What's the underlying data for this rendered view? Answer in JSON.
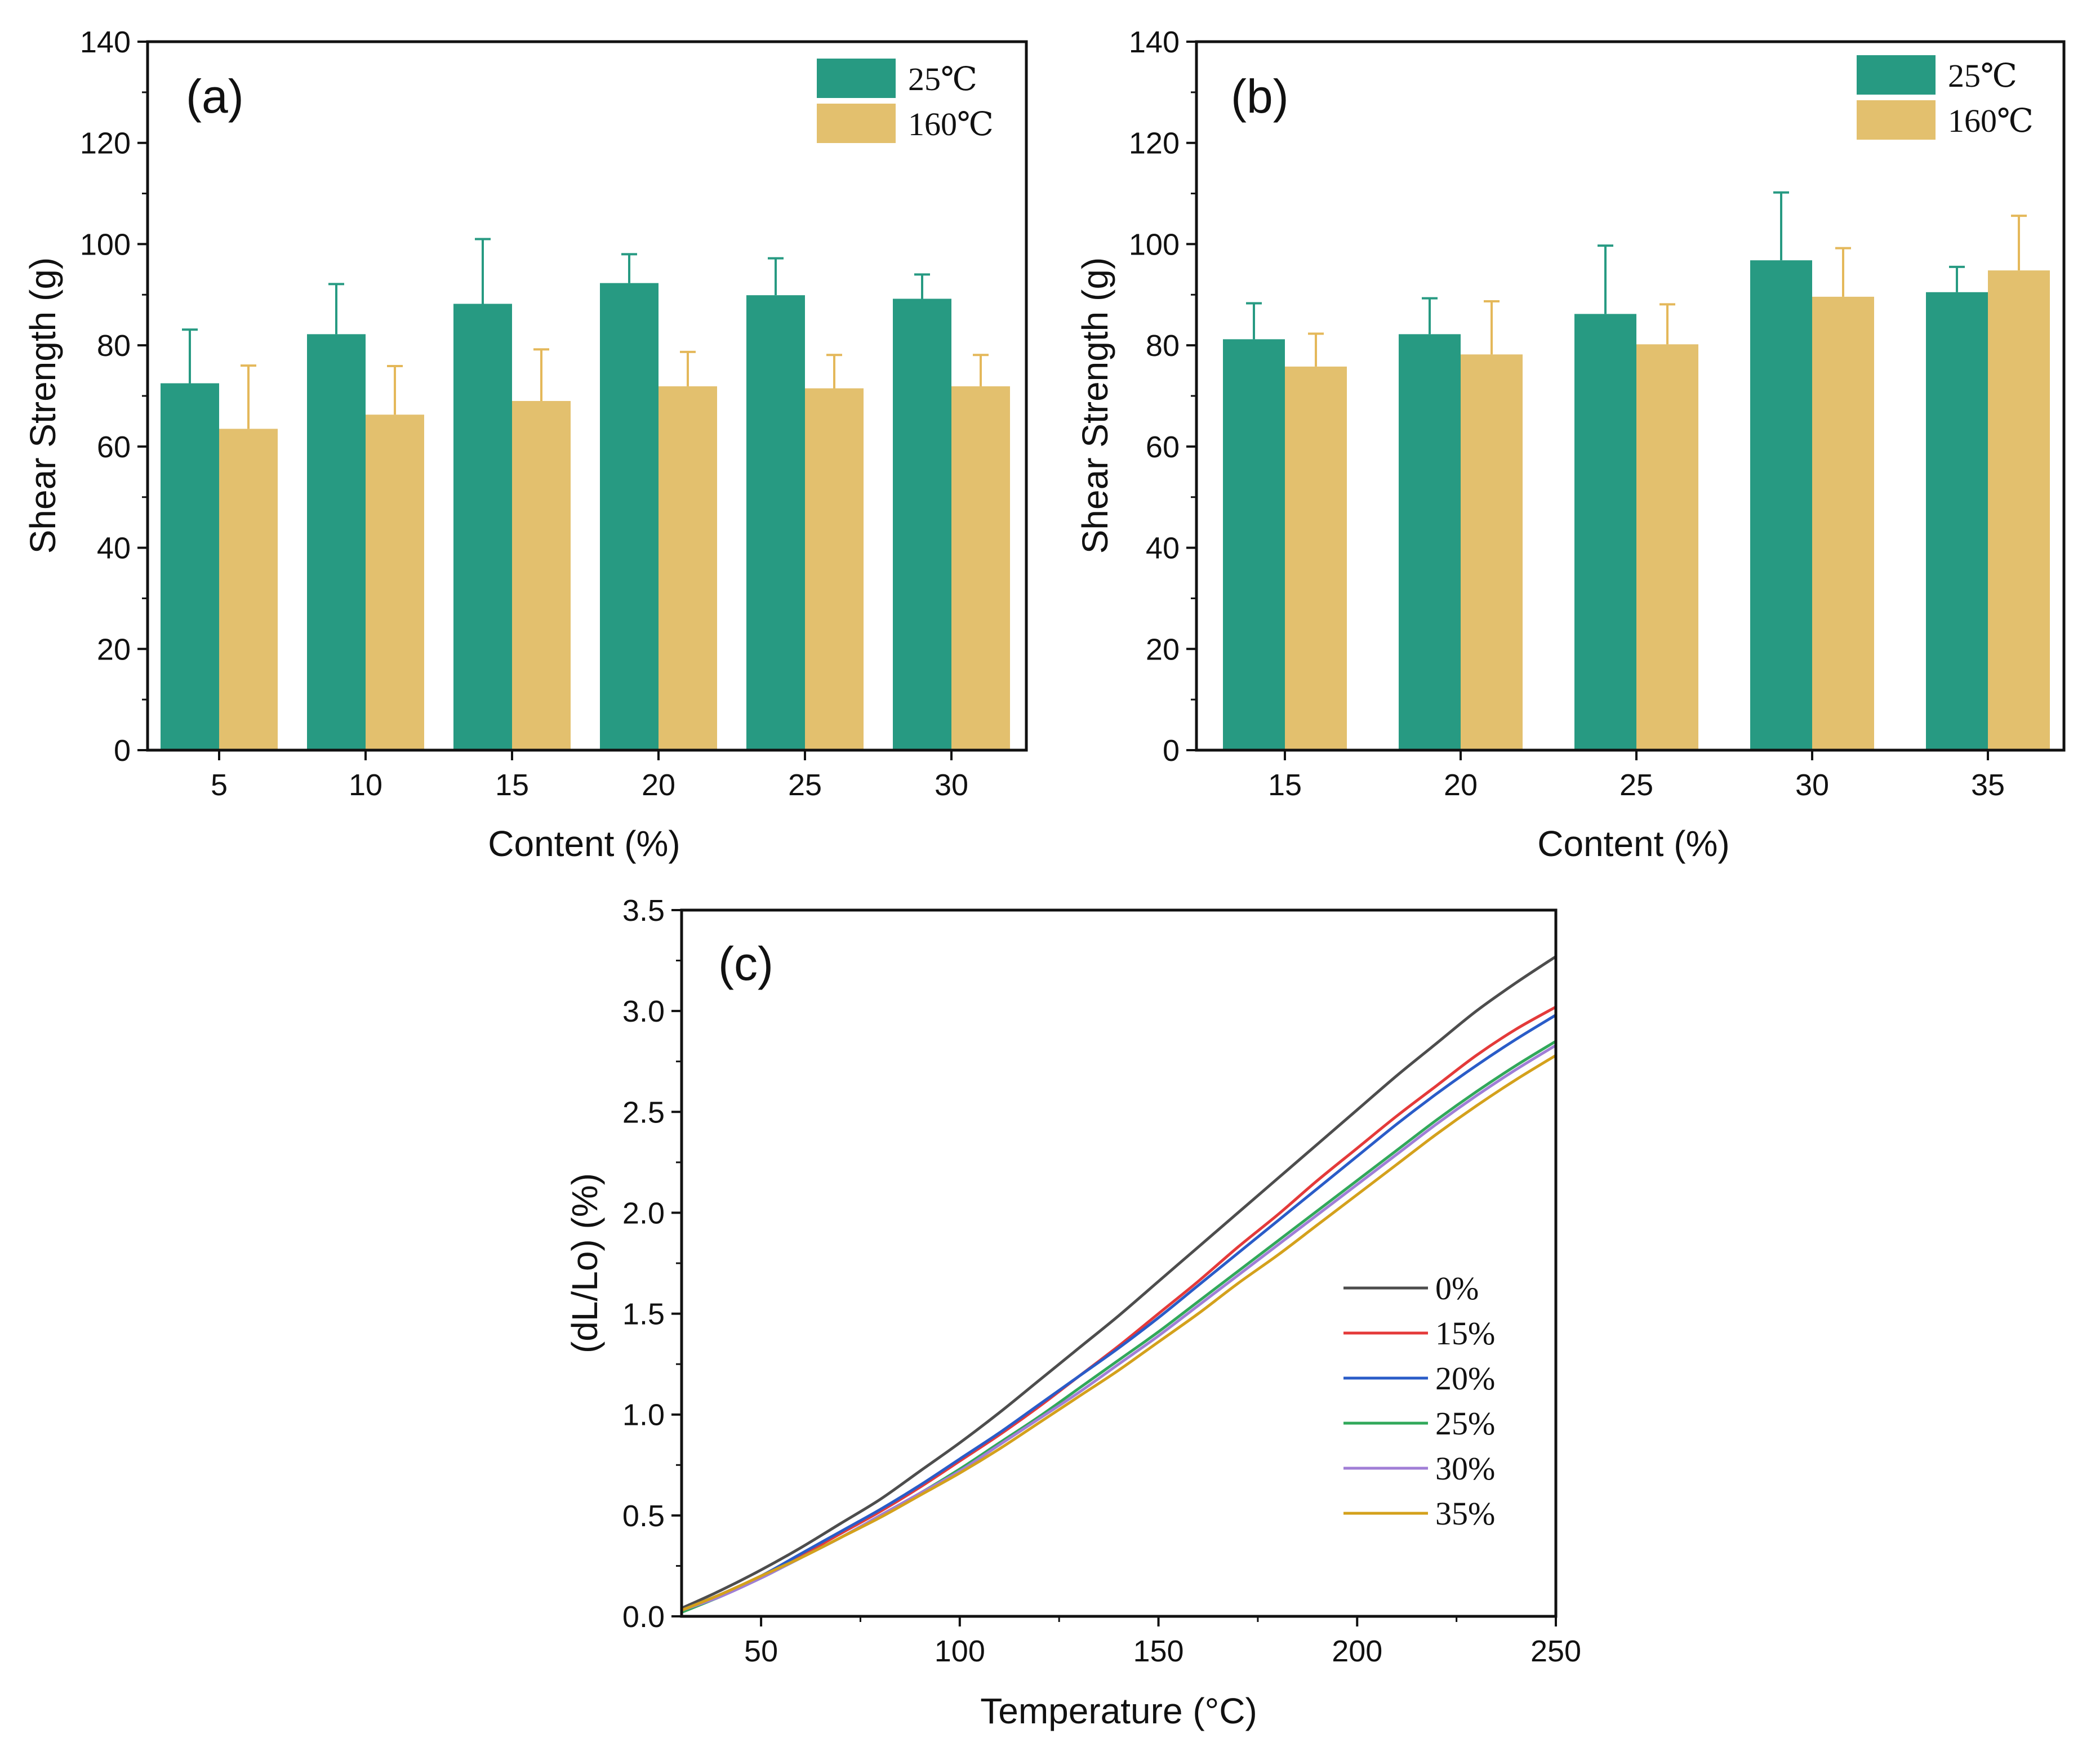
{
  "colors": {
    "teal": "#279a82",
    "tan": "#e3c06e",
    "tan_err": "#e4b85a",
    "c0": "#4d4d4d",
    "c15": "#e43a3a",
    "c20": "#2a5cc8",
    "c25": "#31a85a",
    "c30": "#a07ed6",
    "c35": "#d4a11c"
  },
  "chart_data": [
    {
      "panel_label": "(a)",
      "type": "bar",
      "xlabel": "Content (%)",
      "ylabel": "Shear Strength (g)",
      "ylim": [
        0,
        140
      ],
      "yticks": [
        "0",
        "20",
        "40",
        "60",
        "80",
        "100",
        "120",
        "140"
      ],
      "categories": [
        "5",
        "10",
        "15",
        "20",
        "25",
        "30"
      ],
      "legend_position": "top-right",
      "series": [
        {
          "name": "25℃",
          "color": "#279a82",
          "values": [
            72.5,
            82.2,
            88.2,
            92.3,
            89.9,
            89.2
          ],
          "errors": [
            10.6,
            9.9,
            12.8,
            5.7,
            7.3,
            4.8
          ]
        },
        {
          "name": "160℃",
          "color": "#e3c06e",
          "values": [
            63.5,
            66.3,
            69.0,
            71.9,
            71.5,
            71.9
          ],
          "errors": [
            12.5,
            9.6,
            10.2,
            6.8,
            6.6,
            6.2
          ]
        }
      ]
    },
    {
      "panel_label": "(b)",
      "type": "bar",
      "xlabel": "Content (%)",
      "ylabel": "Shear Strength (g)",
      "ylim": [
        0,
        140
      ],
      "yticks": [
        "0",
        "20",
        "40",
        "60",
        "80",
        "100",
        "120",
        "140"
      ],
      "categories": [
        "15",
        "20",
        "25",
        "30",
        "35"
      ],
      "legend_position": "top-right",
      "series": [
        {
          "name": "25℃",
          "color": "#279a82",
          "values": [
            81.2,
            82.2,
            86.2,
            96.8,
            90.5
          ],
          "errors": [
            7.1,
            7.1,
            13.5,
            13.4,
            5.0
          ]
        },
        {
          "name": "160℃",
          "color": "#e3c06e",
          "values": [
            75.8,
            78.2,
            80.2,
            89.6,
            94.8
          ],
          "errors": [
            6.5,
            10.5,
            7.9,
            9.6,
            10.8
          ]
        }
      ]
    },
    {
      "panel_label": "(c)",
      "type": "line",
      "xlabel": "Temperature (°C)",
      "ylabel": "(dL/Lo) (%)",
      "xlim": [
        30,
        250
      ],
      "ylim": [
        0,
        3.5
      ],
      "xticks": [
        "50",
        "100",
        "150",
        "200",
        "250"
      ],
      "yticks": [
        "0.0",
        "0.5",
        "1.0",
        "1.5",
        "2.0",
        "2.5",
        "3.0",
        "3.5"
      ],
      "legend_position": "center-right",
      "x": [
        30,
        40,
        50,
        60,
        70,
        80,
        90,
        100,
        110,
        120,
        130,
        140,
        150,
        160,
        170,
        180,
        190,
        200,
        210,
        220,
        230,
        240,
        250
      ],
      "series": [
        {
          "name": "0%",
          "color": "#4d4d4d",
          "values": [
            0.04,
            0.13,
            0.23,
            0.34,
            0.46,
            0.58,
            0.72,
            0.86,
            1.01,
            1.17,
            1.33,
            1.49,
            1.66,
            1.83,
            2.0,
            2.17,
            2.34,
            2.51,
            2.68,
            2.84,
            3.0,
            3.14,
            3.27
          ]
        },
        {
          "name": "15%",
          "color": "#e43a3a",
          "values": [
            0.03,
            0.11,
            0.2,
            0.3,
            0.41,
            0.52,
            0.64,
            0.77,
            0.9,
            1.04,
            1.19,
            1.34,
            1.5,
            1.66,
            1.83,
            1.99,
            2.16,
            2.32,
            2.48,
            2.63,
            2.78,
            2.91,
            3.02
          ]
        },
        {
          "name": "20%",
          "color": "#2a5cc8",
          "values": [
            0.03,
            0.11,
            0.2,
            0.31,
            0.42,
            0.53,
            0.65,
            0.78,
            0.91,
            1.05,
            1.19,
            1.33,
            1.48,
            1.64,
            1.8,
            1.96,
            2.12,
            2.28,
            2.44,
            2.59,
            2.73,
            2.86,
            2.98
          ]
        },
        {
          "name": "25%",
          "color": "#31a85a",
          "values": [
            0.02,
            0.1,
            0.19,
            0.29,
            0.39,
            0.5,
            0.61,
            0.73,
            0.86,
            0.99,
            1.13,
            1.27,
            1.41,
            1.56,
            1.71,
            1.86,
            2.01,
            2.16,
            2.31,
            2.46,
            2.6,
            2.73,
            2.85
          ]
        },
        {
          "name": "30%",
          "color": "#a07ed6",
          "values": [
            0.03,
            0.1,
            0.19,
            0.29,
            0.39,
            0.5,
            0.61,
            0.72,
            0.85,
            0.98,
            1.11,
            1.25,
            1.39,
            1.54,
            1.69,
            1.84,
            1.99,
            2.14,
            2.29,
            2.44,
            2.58,
            2.71,
            2.83
          ]
        },
        {
          "name": "35%",
          "color": "#d4a11c",
          "values": [
            0.03,
            0.11,
            0.2,
            0.29,
            0.39,
            0.49,
            0.6,
            0.71,
            0.83,
            0.96,
            1.09,
            1.22,
            1.36,
            1.5,
            1.65,
            1.79,
            1.94,
            2.09,
            2.24,
            2.39,
            2.53,
            2.66,
            2.78
          ]
        }
      ]
    }
  ]
}
